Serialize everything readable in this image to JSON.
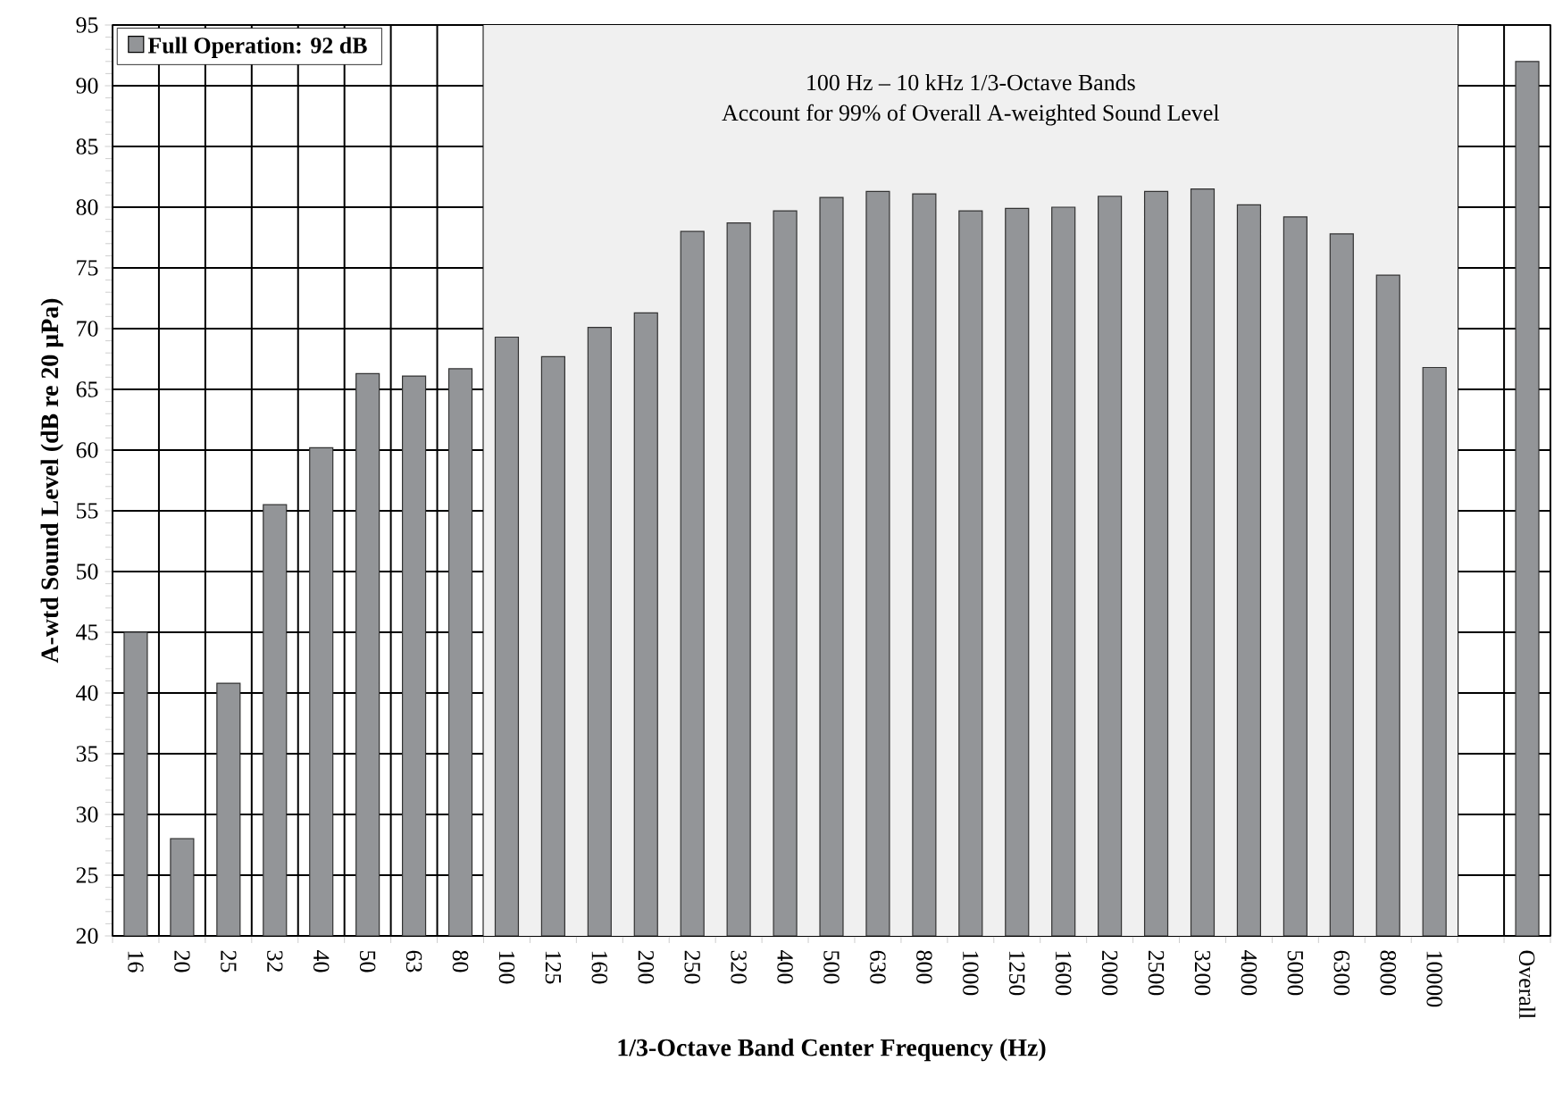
{
  "chart_data": {
    "type": "bar",
    "xlabel": "1/3-Octave Band Center Frequency (Hz)",
    "ylabel": "A-wtd Sound Level (dB re 20 µPa)",
    "categories": [
      "16",
      "20",
      "25",
      "32",
      "40",
      "50",
      "63",
      "80",
      "100",
      "125",
      "160",
      "200",
      "250",
      "320",
      "400",
      "500",
      "630",
      "800",
      "1000",
      "1250",
      "1600",
      "2000",
      "2500",
      "3200",
      "4000",
      "5000",
      "6300",
      "8000",
      "10000",
      null,
      "Overall"
    ],
    "series": [
      {
        "name": "Full Operation:  92 dB",
        "color": "#939598",
        "values": [
          45,
          28,
          40.8,
          55.5,
          60.2,
          66.3,
          66.1,
          66.7,
          69.3,
          67.7,
          70.1,
          71.3,
          78,
          78.7,
          79.7,
          80.8,
          81.3,
          81.1,
          79.7,
          79.9,
          80,
          80.9,
          81.3,
          81.5,
          80.2,
          79.2,
          77.8,
          74.4,
          66.8,
          null,
          92
        ]
      }
    ],
    "ylim": [
      20,
      95
    ],
    "yticks": [
      20,
      25,
      30,
      35,
      40,
      45,
      50,
      55,
      60,
      65,
      70,
      75,
      80,
      85,
      90,
      95
    ],
    "bands": [
      {
        "axis": "x",
        "from": "100",
        "to": "10000",
        "color": "#f0f0f0"
      }
    ],
    "annotations": [
      "100 Hz – 10 kHz 1/3-Octave Bands",
      "Account for 99% of Overall A-weighted Sound Level"
    ],
    "grid": true,
    "legend": "top left"
  }
}
